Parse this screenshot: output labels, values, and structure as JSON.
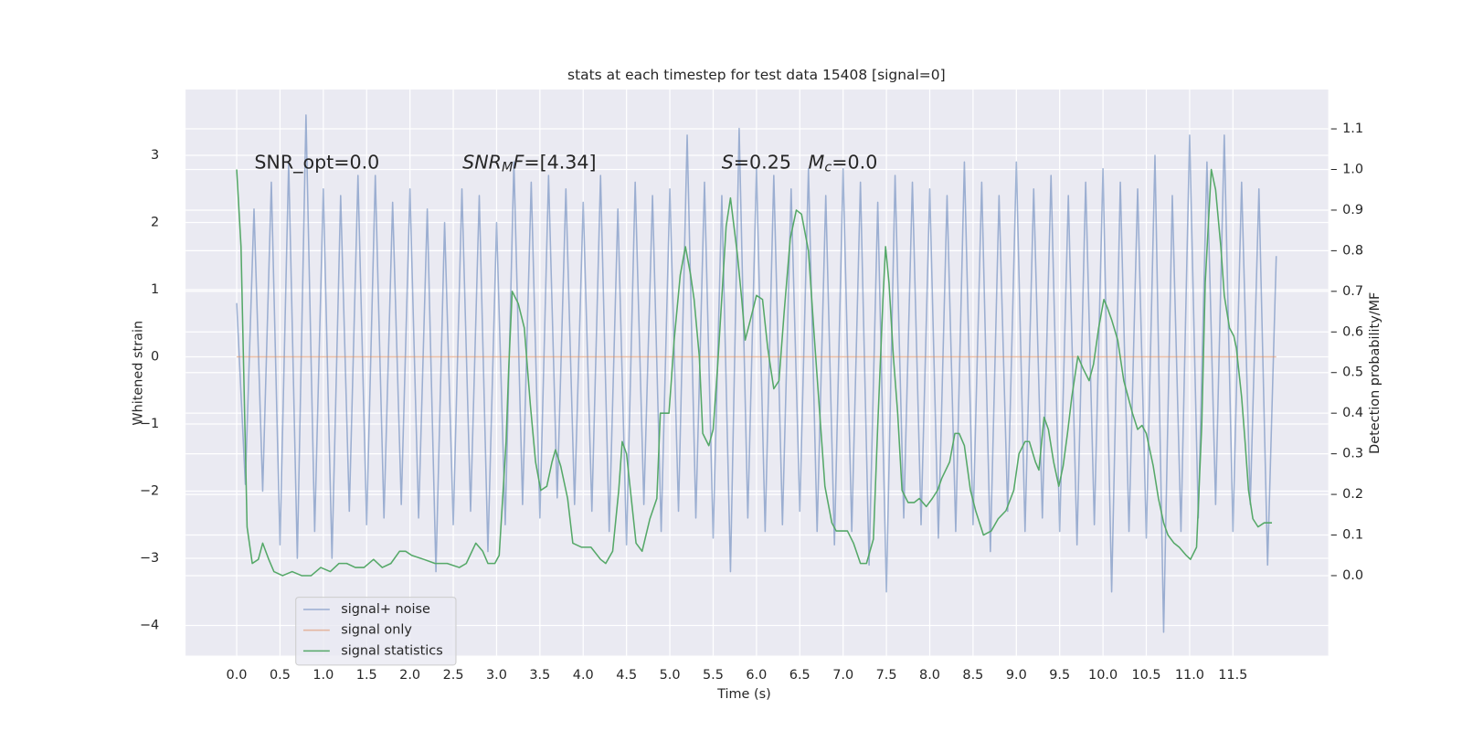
{
  "chart_data": {
    "type": "line",
    "title": "stats at each timestep for test data 15408 [signal=0]",
    "xlabel": "Time (s)",
    "ylabel": "Whitened strain",
    "y2label": "Detection probability/MF",
    "xlim": [
      -0.59,
      12.6
    ],
    "ylim": [
      -4.45,
      3.98
    ],
    "y2lim": [
      -0.197,
      1.197
    ],
    "xticks": [
      {
        "value": 0,
        "label": "0.0"
      },
      {
        "value": 0.5,
        "label": "0.5"
      },
      {
        "value": 1,
        "label": "1.0"
      },
      {
        "value": 1.5,
        "label": "1.5"
      },
      {
        "value": 2,
        "label": "2.0"
      },
      {
        "value": 2.5,
        "label": "2.5"
      },
      {
        "value": 3,
        "label": "3.0"
      },
      {
        "value": 3.5,
        "label": "3.5"
      },
      {
        "value": 4,
        "label": "4.0"
      },
      {
        "value": 4.5,
        "label": "4.5"
      },
      {
        "value": 5,
        "label": "5.0"
      },
      {
        "value": 5.5,
        "label": "5.5"
      },
      {
        "value": 6,
        "label": "6.0"
      },
      {
        "value": 6.5,
        "label": "6.5"
      },
      {
        "value": 7,
        "label": "7.0"
      },
      {
        "value": 7.5,
        "label": "7.5"
      },
      {
        "value": 8,
        "label": "8.0"
      },
      {
        "value": 8.5,
        "label": "8.5"
      },
      {
        "value": 9,
        "label": "9.0"
      },
      {
        "value": 9.5,
        "label": "9.5"
      },
      {
        "value": 10,
        "label": "10.0"
      },
      {
        "value": 10.5,
        "label": "10.5"
      },
      {
        "value": 11,
        "label": "11.0"
      },
      {
        "value": 11.5,
        "label": "11.5"
      }
    ],
    "yticks": [
      {
        "value": -4,
        "label": "−4"
      },
      {
        "value": -3,
        "label": "−3"
      },
      {
        "value": -2,
        "label": "−2"
      },
      {
        "value": -1,
        "label": "−1"
      },
      0,
      1,
      2,
      3
    ],
    "y2ticks": [
      {
        "value": 0,
        "label": "0.0"
      },
      {
        "value": 0.1,
        "label": "0.1"
      },
      {
        "value": 0.2,
        "label": "0.2"
      },
      {
        "value": 0.3,
        "label": "0.3"
      },
      {
        "value": 0.4,
        "label": "0.4"
      },
      {
        "value": 0.5,
        "label": "0.5"
      },
      {
        "value": 0.6,
        "label": "0.6"
      },
      {
        "value": 0.7,
        "label": "0.7"
      },
      {
        "value": 0.8,
        "label": "0.8"
      },
      {
        "value": 0.9,
        "label": "0.9"
      },
      {
        "value": 1,
        "label": "1.0"
      },
      {
        "value": 1.1,
        "label": "1.1"
      }
    ],
    "grid": true,
    "legend": "lower left",
    "annotations": [
      [
        {
          "t": "SNR_opt=0.0"
        }
      ],
      [
        {
          "t": "SNR",
          "italic": true
        },
        {
          "t": "M",
          "italic": true,
          "sub": true
        },
        {
          "t": "F",
          "italic": true
        },
        {
          "t": "=[4.34]"
        }
      ],
      [
        {
          "t": "S",
          "italic": true
        },
        {
          "t": "=0.25"
        }
      ],
      [
        {
          "t": "M",
          "italic": true
        },
        {
          "t": "c",
          "italic": true,
          "sub": true
        },
        {
          "t": "=0.0"
        }
      ]
    ],
    "series": [
      {
        "name": "signal+ noise",
        "color": "#4c72b0",
        "alpha": 0.5,
        "x": [
          0,
          0.1,
          0.2,
          0.3,
          0.4,
          0.5,
          0.6,
          0.7,
          0.8,
          0.9,
          1,
          1.1,
          1.2,
          1.3,
          1.4,
          1.5,
          1.6,
          1.7,
          1.8,
          1.9,
          2,
          2.1,
          2.2,
          2.3,
          2.4,
          2.5,
          2.6,
          2.7,
          2.8,
          2.9,
          3,
          3.1,
          3.2,
          3.3,
          3.4,
          3.5,
          3.6,
          3.7,
          3.8,
          3.9,
          4,
          4.1,
          4.2,
          4.3,
          4.4,
          4.5,
          4.6,
          4.7,
          4.8,
          4.9,
          5,
          5.1,
          5.2,
          5.3,
          5.4,
          5.5,
          5.6,
          5.7,
          5.8,
          5.9,
          6,
          6.1,
          6.2,
          6.3,
          6.4,
          6.5,
          6.6,
          6.7,
          6.8,
          6.9,
          7,
          7.1,
          7.2,
          7.3,
          7.4,
          7.5,
          7.6,
          7.7,
          7.8,
          7.9,
          8,
          8.1,
          8.2,
          8.3,
          8.4,
          8.5,
          8.6,
          8.7,
          8.8,
          8.9,
          9,
          9.1,
          9.2,
          9.3,
          9.4,
          9.5,
          9.6,
          9.7,
          9.8,
          9.9,
          10,
          10.1,
          10.2,
          10.3,
          10.4,
          10.5,
          10.6,
          10.7,
          10.8,
          10.9,
          11,
          11.1,
          11.2,
          11.3,
          11.4,
          11.5,
          11.6,
          11.7,
          11.8,
          11.9,
          12
        ],
        "values": [
          0.8,
          -1.9,
          2.2,
          -2.0,
          2.6,
          -2.8,
          2.9,
          -3.0,
          3.6,
          -2.6,
          2.5,
          -3.0,
          2.4,
          -2.3,
          2.7,
          -2.5,
          2.7,
          -2.4,
          2.3,
          -2.2,
          2.5,
          -2.4,
          2.2,
          -3.2,
          2.0,
          -2.5,
          2.5,
          -2.3,
          2.4,
          -2.9,
          2.0,
          -2.5,
          2.9,
          -2.2,
          2.6,
          -2.4,
          2.7,
          -2.1,
          2.5,
          -2.2,
          2.3,
          -2.3,
          2.7,
          -2.6,
          2.2,
          -2.8,
          2.6,
          -2.2,
          2.4,
          -2.6,
          2.5,
          -2.3,
          3.3,
          -2.4,
          2.6,
          -2.7,
          2.4,
          -3.2,
          3.4,
          -2.4,
          2.8,
          -2.6,
          2.7,
          -2.5,
          2.5,
          -2.3,
          2.8,
          -2.6,
          2.4,
          -2.8,
          2.8,
          -2.6,
          2.6,
          -3.1,
          2.3,
          -3.5,
          2.7,
          -2.4,
          2.6,
          -2.5,
          2.5,
          -2.7,
          2.4,
          -2.6,
          2.9,
          -2.5,
          2.6,
          -2.9,
          2.4,
          -2.3,
          2.9,
          -2.6,
          2.5,
          -2.4,
          2.7,
          -2.6,
          2.4,
          -2.8,
          2.6,
          -2.5,
          2.8,
          -3.5,
          2.6,
          -2.6,
          2.5,
          -2.7,
          3.0,
          -4.1,
          2.4,
          -2.6,
          3.3,
          -2.4,
          2.9,
          -2.2,
          3.3,
          -2.6,
          2.6,
          -2.2,
          2.5,
          -3.1,
          1.5
        ]
      },
      {
        "name": "signal only",
        "color": "#dd8452",
        "alpha": 0.5,
        "x": [
          0,
          12
        ],
        "values": [
          0,
          0
        ]
      },
      {
        "name": "signal statistics",
        "color": "#55a868",
        "alpha": 1,
        "axis": "y2",
        "x": [
          0,
          0.05,
          0.12,
          0.18,
          0.25,
          0.3,
          0.37,
          0.43,
          0.53,
          0.64,
          0.75,
          0.86,
          0.97,
          1.08,
          1.18,
          1.27,
          1.37,
          1.47,
          1.58,
          1.68,
          1.78,
          1.88,
          1.95,
          2.02,
          2.16,
          2.29,
          2.43,
          2.57,
          2.65,
          2.76,
          2.84,
          2.9,
          2.98,
          3.03,
          3.11,
          3.14,
          3.18,
          3.25,
          3.32,
          3.39,
          3.45,
          3.51,
          3.58,
          3.64,
          3.68,
          3.74,
          3.82,
          3.88,
          3.98,
          4.09,
          4.2,
          4.26,
          4.34,
          4.41,
          4.45,
          4.5,
          4.55,
          4.61,
          4.68,
          4.77,
          4.85,
          4.89,
          4.99,
          5.05,
          5.12,
          5.18,
          5.24,
          5.28,
          5.34,
          5.38,
          5.45,
          5.5,
          5.55,
          5.61,
          5.65,
          5.7,
          5.74,
          5.78,
          5.83,
          5.87,
          5.93,
          6,
          6.07,
          6.13,
          6.2,
          6.26,
          6.32,
          6.39,
          6.46,
          6.52,
          6.6,
          6.67,
          6.73,
          6.79,
          6.87,
          6.92,
          6.99,
          7.05,
          7.12,
          7.2,
          7.27,
          7.35,
          7.4,
          7.46,
          7.49,
          7.53,
          7.58,
          7.63,
          7.68,
          7.75,
          7.82,
          7.88,
          7.96,
          8.03,
          8.09,
          8.14,
          8.23,
          8.29,
          8.34,
          8.4,
          8.47,
          8.53,
          8.62,
          8.71,
          8.79,
          8.88,
          8.97,
          9.03,
          9.1,
          9.15,
          9.22,
          9.26,
          9.32,
          9.37,
          9.43,
          9.49,
          9.54,
          9.59,
          9.64,
          9.71,
          9.77,
          9.84,
          9.89,
          9.95,
          10.01,
          10.05,
          10.1,
          10.17,
          10.24,
          10.34,
          10.4,
          10.45,
          10.5,
          10.58,
          10.64,
          10.7,
          10.75,
          10.82,
          10.88,
          10.96,
          11.01,
          11.08,
          11.14,
          11.18,
          11.25,
          11.3,
          11.36,
          11.4,
          11.46,
          11.51,
          11.54,
          11.6,
          11.64,
          11.68,
          11.73,
          11.79,
          11.86,
          11.95
        ],
        "values": [
          1.0,
          0.81,
          0.12,
          0.03,
          0.04,
          0.08,
          0.04,
          0.01,
          0.0,
          0.01,
          0.0,
          0.0,
          0.02,
          0.01,
          0.03,
          0.03,
          0.02,
          0.02,
          0.04,
          0.02,
          0.03,
          0.06,
          0.06,
          0.05,
          0.04,
          0.03,
          0.03,
          0.02,
          0.03,
          0.08,
          0.06,
          0.03,
          0.03,
          0.05,
          0.33,
          0.51,
          0.7,
          0.67,
          0.61,
          0.42,
          0.28,
          0.21,
          0.22,
          0.28,
          0.31,
          0.27,
          0.19,
          0.08,
          0.07,
          0.07,
          0.04,
          0.03,
          0.06,
          0.21,
          0.33,
          0.3,
          0.2,
          0.08,
          0.06,
          0.14,
          0.19,
          0.4,
          0.4,
          0.58,
          0.74,
          0.81,
          0.74,
          0.68,
          0.54,
          0.35,
          0.32,
          0.36,
          0.51,
          0.72,
          0.86,
          0.93,
          0.86,
          0.79,
          0.68,
          0.58,
          0.63,
          0.69,
          0.68,
          0.56,
          0.46,
          0.48,
          0.65,
          0.83,
          0.9,
          0.89,
          0.8,
          0.58,
          0.4,
          0.22,
          0.13,
          0.11,
          0.11,
          0.11,
          0.08,
          0.03,
          0.03,
          0.09,
          0.37,
          0.68,
          0.81,
          0.72,
          0.54,
          0.4,
          0.21,
          0.18,
          0.18,
          0.19,
          0.17,
          0.19,
          0.21,
          0.24,
          0.28,
          0.35,
          0.35,
          0.32,
          0.21,
          0.16,
          0.1,
          0.11,
          0.14,
          0.16,
          0.21,
          0.3,
          0.33,
          0.33,
          0.28,
          0.26,
          0.39,
          0.36,
          0.28,
          0.22,
          0.27,
          0.35,
          0.44,
          0.54,
          0.51,
          0.48,
          0.52,
          0.61,
          0.68,
          0.66,
          0.63,
          0.58,
          0.48,
          0.4,
          0.36,
          0.37,
          0.35,
          0.27,
          0.19,
          0.13,
          0.1,
          0.08,
          0.07,
          0.05,
          0.04,
          0.07,
          0.37,
          0.72,
          1.0,
          0.95,
          0.81,
          0.69,
          0.61,
          0.59,
          0.56,
          0.44,
          0.33,
          0.21,
          0.14,
          0.12,
          0.13,
          0.13
        ]
      }
    ]
  }
}
